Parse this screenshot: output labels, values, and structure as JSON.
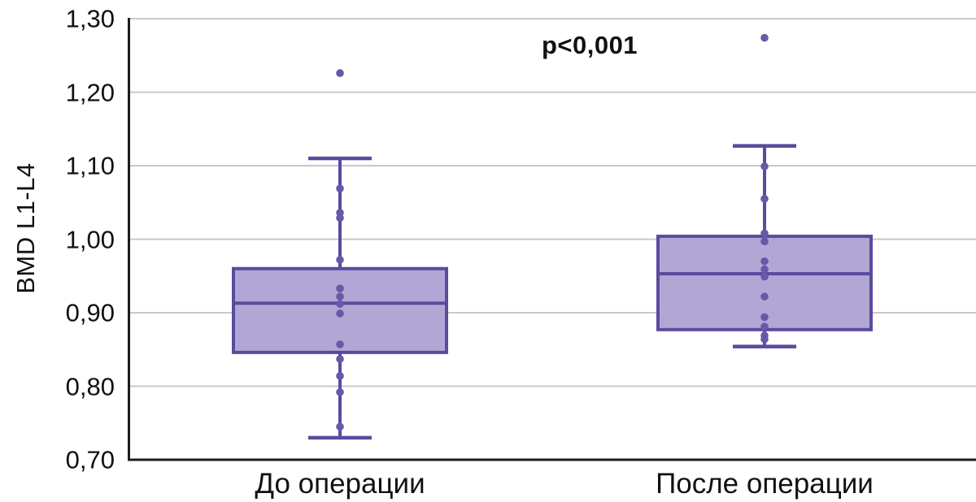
{
  "chart_data": {
    "type": "boxplot",
    "title": "",
    "xlabel": "",
    "ylabel": "BMD L1-L4",
    "annotation": "p<0,001",
    "ylim": [
      0.7,
      1.3
    ],
    "grid": "horizontal-gray",
    "legend": "none",
    "decimal_separator": ",",
    "yticks": [
      {
        "value": 1.3,
        "label": "1,30"
      },
      {
        "value": 1.2,
        "label": "1,20"
      },
      {
        "value": 1.1,
        "label": "1,10"
      },
      {
        "value": 1.0,
        "label": "1,00"
      },
      {
        "value": 0.9,
        "label": "0,90"
      },
      {
        "value": 0.8,
        "label": "0,80"
      },
      {
        "value": 0.7,
        "label": "0,70"
      }
    ],
    "categories": [
      "До операции",
      "После операции"
    ],
    "series": [
      {
        "category": "До операции",
        "whisker_low": 0.73,
        "q1": 0.846,
        "median": 0.913,
        "q3": 0.96,
        "whisker_high": 1.11,
        "outliers": [
          1.226
        ],
        "points": [
          1.226,
          1.069,
          1.036,
          1.029,
          0.972,
          0.933,
          0.922,
          0.912,
          0.899,
          0.857,
          0.837,
          0.814,
          0.792,
          0.745
        ]
      },
      {
        "category": "После операции",
        "whisker_low": 0.854,
        "q1": 0.877,
        "median": 0.953,
        "q3": 1.004,
        "whisker_high": 1.127,
        "outliers": [
          1.274
        ],
        "points": [
          1.274,
          1.099,
          1.055,
          1.008,
          0.997,
          0.97,
          0.959,
          0.949,
          0.922,
          0.894,
          0.881,
          0.869,
          0.864
        ]
      }
    ],
    "colors": {
      "box_fill": "#b2a7d4",
      "box_border": "#5b4b9e",
      "dot": "#6759a8",
      "gridline": "#c8c8c8",
      "axis": "#1c1c1c",
      "text": "#111111"
    }
  }
}
